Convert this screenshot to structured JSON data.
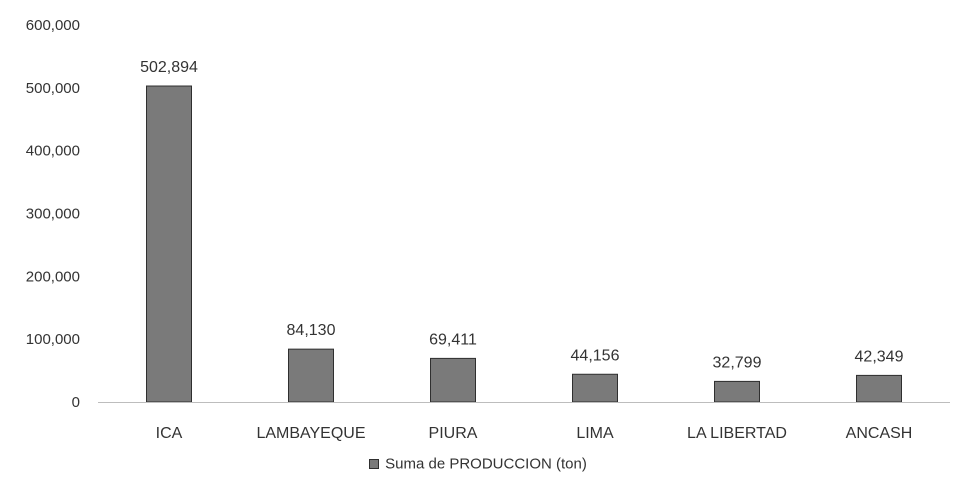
{
  "chart_data": {
    "type": "bar",
    "categories": [
      "ICA",
      "LAMBAYEQUE",
      "PIURA",
      "LIMA",
      "LA LIBERTAD",
      "ANCASH"
    ],
    "series": [
      {
        "name": "Suma de PRODUCCION (ton)",
        "values": [
          502894,
          84130,
          69411,
          44156,
          32799,
          42349
        ],
        "data_labels": [
          "502,894",
          "84,130",
          "69,411",
          "44,156",
          "32,799",
          "42,349"
        ]
      }
    ],
    "y_ticks": [
      "0",
      "100,000",
      "200,000",
      "300,000",
      "400,000",
      "500,000",
      "600,000"
    ],
    "ylim": [
      0,
      600000
    ],
    "grid": false,
    "legend_position": "bottom",
    "colors": {
      "bar_fill": "#7a7a7a",
      "bar_stroke": "#2f2f2f",
      "axis": "#bdbdbd"
    }
  }
}
